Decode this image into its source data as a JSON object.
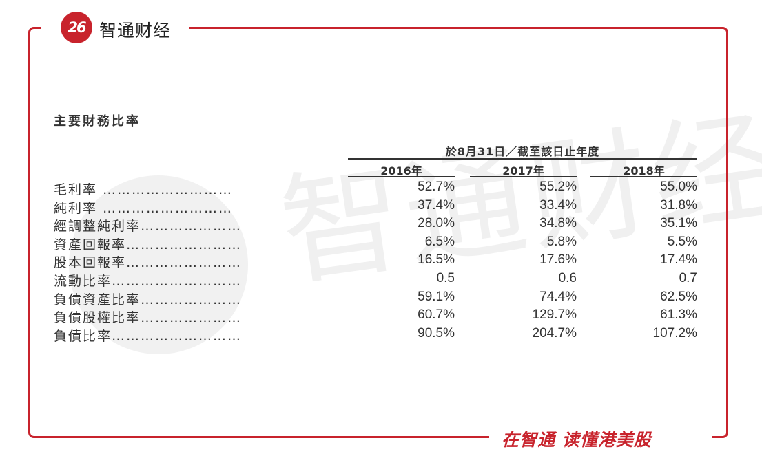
{
  "header": {
    "logo_text": "26",
    "brand": "智通财经"
  },
  "footer": {
    "slogan": "在智通 读懂港美股"
  },
  "watermark": {
    "text": "智通财经"
  },
  "table": {
    "title": "主要財務比率",
    "period_header": "於8月31日／截至該日止年度",
    "years": [
      "2016年",
      "2017年",
      "2018年"
    ],
    "rows": [
      {
        "label": "毛利率 ………………………",
        "values": [
          "52.7%",
          "55.2%",
          "55.0%"
        ]
      },
      {
        "label": "純利率 ………………………",
        "values": [
          "37.4%",
          "33.4%",
          "31.8%"
        ]
      },
      {
        "label": "經調整純利率…………………",
        "values": [
          "28.0%",
          "34.8%",
          "35.1%"
        ]
      },
      {
        "label": "資產回報率……………………",
        "values": [
          "6.5%",
          "5.8%",
          "5.5%"
        ]
      },
      {
        "label": "股本回報率……………………",
        "values": [
          "16.5%",
          "17.6%",
          "17.4%"
        ]
      },
      {
        "label": "流動比率………………………",
        "values": [
          "0.5",
          "0.6",
          "0.7"
        ]
      },
      {
        "label": "負債資產比率…………………",
        "values": [
          "59.1%",
          "74.4%",
          "62.5%"
        ]
      },
      {
        "label": "負債股權比率…………………",
        "values": [
          "60.7%",
          "129.7%",
          "61.3%"
        ]
      },
      {
        "label": "負債比率………………………",
        "values": [
          "90.5%",
          "204.7%",
          "107.2%"
        ]
      }
    ]
  },
  "colors": {
    "brand_red": "#c8232c",
    "text": "#333333"
  }
}
